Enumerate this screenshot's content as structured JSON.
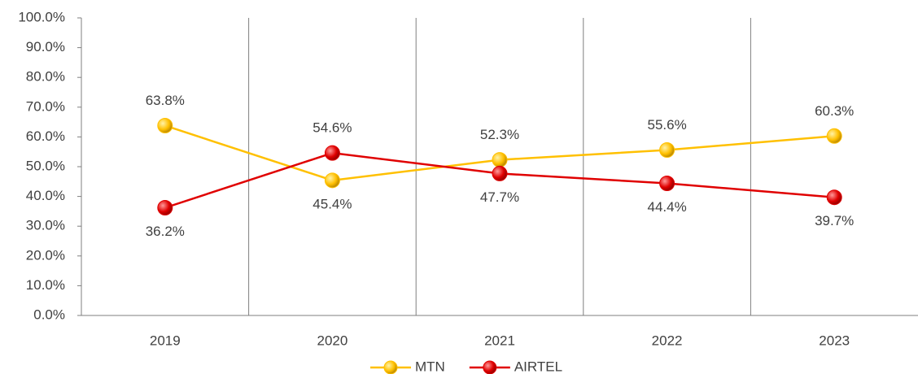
{
  "chart_data": {
    "type": "line",
    "categories": [
      "2019",
      "2020",
      "2021",
      "2022",
      "2023"
    ],
    "series": [
      {
        "name": "MTN",
        "color": "#FFC000",
        "values": [
          63.8,
          45.4,
          52.3,
          55.6,
          60.3
        ],
        "value_labels": [
          "63.8%",
          "45.4%",
          "52.3%",
          "55.6%",
          "60.3%"
        ]
      },
      {
        "name": "AIRTEL",
        "color": "#E00000",
        "values": [
          36.2,
          54.6,
          47.7,
          44.4,
          39.7
        ],
        "value_labels": [
          "36.2%",
          "54.6%",
          "47.7%",
          "44.4%",
          "39.7%"
        ]
      }
    ],
    "ylim": [
      0,
      100
    ],
    "yticks": [
      {
        "value": 0,
        "label": "0.0%"
      },
      {
        "value": 10,
        "label": "10.0%"
      },
      {
        "value": 20,
        "label": "20.0%"
      },
      {
        "value": 30,
        "label": "30.0%"
      },
      {
        "value": 40,
        "label": "40.0%"
      },
      {
        "value": 50,
        "label": "50.0%"
      },
      {
        "value": 60,
        "label": "60.0%"
      },
      {
        "value": 70,
        "label": "70.0%"
      },
      {
        "value": 80,
        "label": "80.0%"
      },
      {
        "value": 90,
        "label": "90.0%"
      },
      {
        "value": 100,
        "label": "100.0%"
      }
    ],
    "legend": "bottom"
  }
}
